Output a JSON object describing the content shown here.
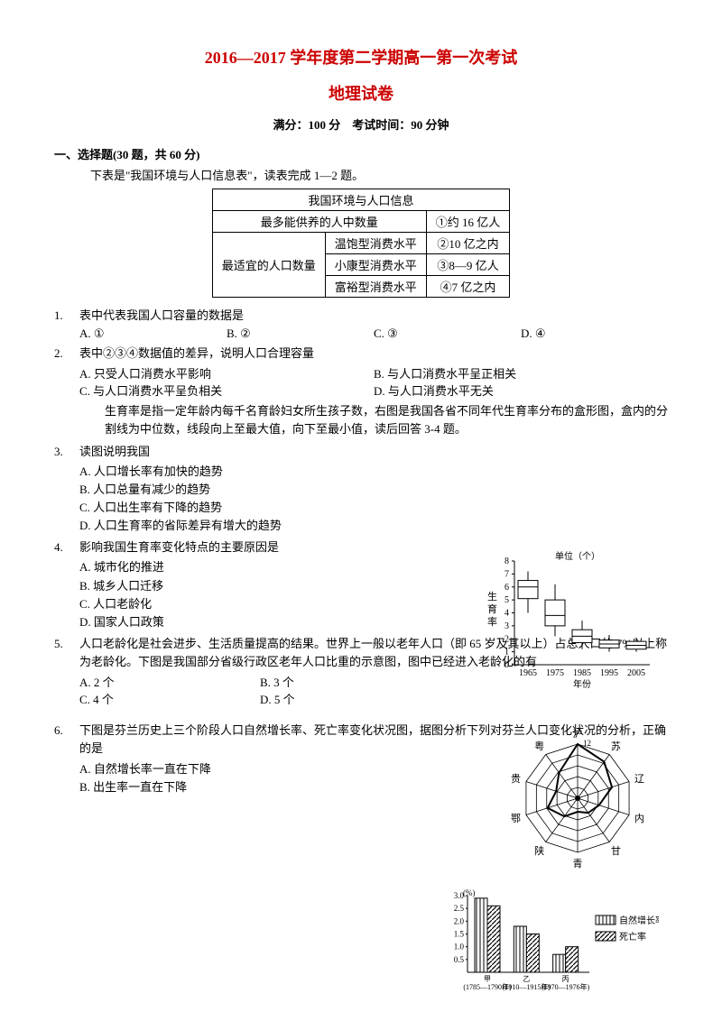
{
  "header": {
    "title_main": "2016—2017 学年度第二学期高一第一次考试",
    "title_sub": "地理试卷",
    "exam_info": "满分：100 分　考试时间：90 分钟"
  },
  "section1": {
    "heading": "一、选择题(30 题，共 60 分)",
    "intro": "下表是\"我国环境与人口信息表\"，读表完成 1—2 题。"
  },
  "table": {
    "title": "我国环境与人口信息",
    "row1_l": "最多能供养的人中数量",
    "row1_r": "①约 16 亿人",
    "merge_label": "最适宜的人口数量",
    "r2c1": "温饱型消费水平",
    "r2c2": "②10 亿之内",
    "r3c1": "小康型消费水平",
    "r3c2": "③8—9 亿人",
    "r4c1": "富裕型消费水平",
    "r4c2": "④7 亿之内"
  },
  "q1": {
    "num": "1.",
    "text": "表中代表我国人口容量的数据是",
    "a": "A.  ①",
    "b": "B.  ②",
    "c": "C.  ③",
    "d": "D.  ④"
  },
  "q2": {
    "num": "2.",
    "text": "表中②③④数据值的差异，说明人口合理容量",
    "a": "A. 只受人口消费水平影响",
    "b": "B. 与人口消费水平呈正相关",
    "c": "C. 与人口消费水平呈负相关",
    "d": "D. 与人口消费水平无关"
  },
  "para34": "生育率是指一定年龄内每千名育龄妇女所生孩子数，右图是我国各省不同年代生育率分布的盒形图，盒内的分割线为中位数，线段向上至最大值，向下至最小值，读后回答 3-4 题。",
  "q3": {
    "num": "3.",
    "text": "读图说明我国",
    "a": "A. 人口增长率有加快的趋势",
    "b": "B. 人口总量有减少的趋势",
    "c": "C. 人口出生率有下降的趋势",
    "d": "D. 人口生育率的省际差异有增大的趋势"
  },
  "q4": {
    "num": "4.",
    "text": "影响我国生育率变化特点的主要原因是",
    "a": "A. 城市化的推进",
    "b": "B. 城乡人口迁移",
    "c": "C. 人口老龄化",
    "d": "D. 国家人口政策"
  },
  "q5": {
    "num": "5.",
    "text": "人口老龄化是社会进步、生活质量提高的结果。世界上一般以老年人口（即 65 岁及其以上）占总人口的 7%以上称为老龄化。下图是我国部分省级行政区老年人口比重的示意图，图中已经进入老龄化的有",
    "a": "A. 2 个",
    "b": "B. 3 个",
    "c": "C. 4 个",
    "d": "D. 5 个"
  },
  "q6": {
    "num": "6.",
    "text": "下图是芬兰历史上三个阶段人口自然增长率、死亡率变化状况图，据图分析下列对芬兰人口变化状况的分析，正确的是",
    "a": "A. 自然增长率一直在下降",
    "b": "B. 出生率一直在下降"
  },
  "boxplot": {
    "type": "boxplot",
    "ylabel": "生育率",
    "yunit": "单位（个）",
    "ylim": [
      0,
      8
    ],
    "yticks": [
      0,
      1,
      2,
      3,
      4,
      5,
      6,
      7,
      8
    ],
    "xlabel": "年份",
    "categories": [
      "1965",
      "1975",
      "1985",
      "1995",
      "2005"
    ],
    "boxes": [
      {
        "min": 4.0,
        "q1": 5.1,
        "med": 6.0,
        "q3": 6.5,
        "max": 7.2
      },
      {
        "min": 2.2,
        "q1": 3.0,
        "med": 3.8,
        "q3": 5.0,
        "max": 6.2
      },
      {
        "min": 1.2,
        "q1": 1.7,
        "med": 2.2,
        "q3": 2.7,
        "max": 3.4
      },
      {
        "min": 1.0,
        "q1": 1.3,
        "med": 1.6,
        "q3": 1.9,
        "max": 2.3
      },
      {
        "min": 1.0,
        "q1": 1.2,
        "med": 1.5,
        "q3": 1.8,
        "max": 2.1
      }
    ],
    "line_color": "#000000",
    "background_color": "#ffffff",
    "font_size": 10
  },
  "radar": {
    "type": "radar",
    "labels": [
      "沪",
      "苏",
      "辽",
      "内",
      "甘",
      "青",
      "陕",
      "鄂",
      "贵",
      "粤"
    ],
    "max_value": 12,
    "rings": 5,
    "values": [
      12,
      10,
      8,
      5,
      4,
      3,
      5,
      7,
      5,
      7
    ],
    "line_color": "#000000",
    "fill_color": "none",
    "font_size": 11
  },
  "barchart": {
    "type": "bar",
    "yunit": "(%)",
    "ylim": [
      0,
      3.0
    ],
    "yticks": [
      0.5,
      1.0,
      1.5,
      2.0,
      2.5,
      3.0
    ],
    "categories": [
      "甲\n(1785—1790年)",
      "乙\n(1910—1915年)",
      "丙\n(1970—1976年)"
    ],
    "series": [
      {
        "name": "自然增长率",
        "pattern": "vstripe",
        "values": [
          2.9,
          1.8,
          0.7
        ]
      },
      {
        "name": "死亡率",
        "pattern": "diag",
        "values": [
          2.6,
          1.5,
          1.0
        ]
      }
    ],
    "line_color": "#000000",
    "font_size": 9
  }
}
